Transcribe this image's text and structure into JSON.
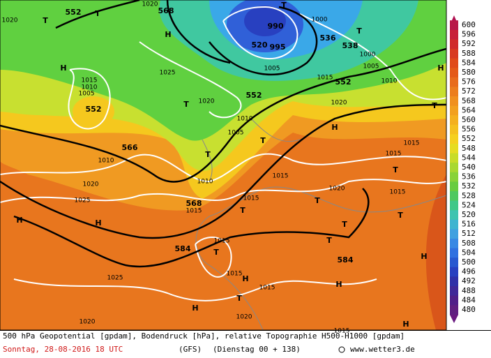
{
  "map": {
    "labels": [
      "552",
      "T",
      "1020",
      "568",
      "T",
      "1020",
      "T",
      "990",
      "1000",
      "H",
      "T",
      "520",
      "995",
      "536",
      "538",
      "1000",
      "H",
      "1025",
      "1005",
      "1005",
      "H",
      "1015",
      "1010",
      "1005",
      "552",
      "1020",
      "T",
      "552",
      "1015",
      "552",
      "1010",
      "1020",
      "T",
      "1010",
      "1005",
      "H",
      "566",
      "T",
      "1015",
      "1010",
      "T",
      "1015",
      "1010",
      "1015",
      "T",
      "1020",
      "1020",
      "1015",
      "1025",
      "568",
      "1015",
      "1015",
      "T",
      "T",
      "H",
      "H",
      "T",
      "T",
      "1015",
      "584",
      "T",
      "T",
      "584",
      "H",
      "1025",
      "1015",
      "H",
      "1015",
      "H",
      "T",
      "H",
      "1020",
      "1020",
      "H",
      "1015"
    ]
  },
  "scale": {
    "values": [
      600,
      596,
      592,
      588,
      584,
      580,
      576,
      572,
      568,
      564,
      560,
      556,
      552,
      548,
      544,
      540,
      536,
      532,
      528,
      524,
      520,
      516,
      512,
      508,
      504,
      500,
      496,
      492,
      488,
      484,
      480
    ],
    "colors": [
      "#b81848",
      "#c8203a",
      "#d02c2c",
      "#d83a22",
      "#e04a1a",
      "#e45a18",
      "#e86c1c",
      "#ec7e1e",
      "#f09020",
      "#f2a020",
      "#f4b020",
      "#f5c020",
      "#f5d020",
      "#e6dc22",
      "#c8dc28",
      "#a8d830",
      "#88d238",
      "#68cc40",
      "#50c860",
      "#40c888",
      "#40c4b0",
      "#40b4d0",
      "#40a0e0",
      "#3888e4",
      "#3070e0",
      "#2858d0",
      "#2840c0",
      "#3030a8",
      "#402898",
      "#502088",
      "#602080"
    ]
  },
  "footer": {
    "description": "500 hPa Geopotential [gpdam], Bodendruck [hPa], relative Topographie H500-H1000 [gpdam]",
    "date": "Sonntag, 28-08-2016  18 UTC",
    "model": "(GFS)",
    "run": "(Dienstag 00 + 138)",
    "site": "www.wetter3.de"
  }
}
